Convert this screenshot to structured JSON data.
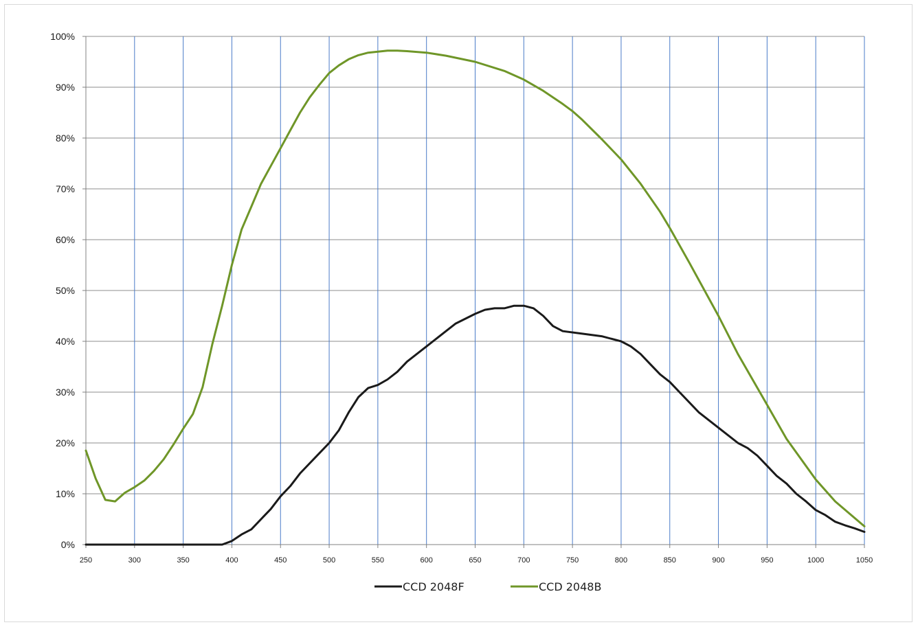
{
  "chart_data": {
    "type": "line",
    "title": "",
    "xlabel": "",
    "ylabel": "",
    "xlim": [
      250,
      1050
    ],
    "ylim": [
      0,
      100
    ],
    "x_ticks": [
      250,
      300,
      350,
      400,
      450,
      500,
      550,
      600,
      650,
      700,
      750,
      800,
      850,
      900,
      950,
      1000,
      1050
    ],
    "x_tick_labels": [
      "250",
      "300",
      "350",
      "400",
      "450",
      "500",
      "550",
      "600",
      "650",
      "700",
      "750",
      "800",
      "850",
      "900",
      "950",
      "1000",
      "1050"
    ],
    "y_ticks": [
      0,
      10,
      20,
      30,
      40,
      50,
      60,
      70,
      80,
      90,
      100
    ],
    "y_tick_labels": [
      "0%",
      "10%",
      "20%",
      "30%",
      "40%",
      "50%",
      "60%",
      "70%",
      "80%",
      "90%",
      "100%"
    ],
    "grid": true,
    "legend_position": "bottom",
    "colors": {
      "gridH": "#8c8c8c",
      "gridV": "#4a7bc8",
      "axis": "#808080"
    },
    "series": [
      {
        "name": "CCD 2048F",
        "color": "#1a1a1a",
        "x": [
          250,
          300,
          350,
          390,
          400,
          410,
          420,
          430,
          440,
          450,
          460,
          470,
          480,
          490,
          500,
          510,
          520,
          530,
          540,
          550,
          560,
          570,
          580,
          600,
          620,
          630,
          650,
          660,
          670,
          680,
          690,
          700,
          710,
          720,
          730,
          740,
          760,
          780,
          800,
          810,
          820,
          830,
          840,
          850,
          860,
          880,
          900,
          920,
          930,
          940,
          950,
          960,
          970,
          980,
          990,
          1000,
          1010,
          1020,
          1030,
          1040,
          1050
        ],
        "y": [
          0,
          0,
          0,
          0,
          0.7,
          2,
          3,
          5,
          7,
          9.5,
          11.5,
          14,
          16,
          18,
          20,
          22.5,
          26,
          29,
          30.8,
          31.4,
          32.5,
          34,
          36,
          39,
          42,
          43.5,
          45.4,
          46.2,
          46.5,
          46.5,
          47,
          47,
          46.5,
          45,
          43,
          42,
          41.5,
          41,
          40,
          39,
          37.5,
          35.5,
          33.5,
          32,
          30,
          26,
          23,
          20,
          19,
          17.5,
          15.5,
          13.5,
          12,
          10,
          8.5,
          6.8,
          5.8,
          4.5,
          3.8,
          3.2,
          2.5
        ]
      },
      {
        "name": "CCD 2048B",
        "color": "#6f9628",
        "x": [
          250,
          260,
          270,
          280,
          290,
          300,
          310,
          320,
          330,
          340,
          350,
          360,
          370,
          380,
          390,
          400,
          410,
          420,
          430,
          440,
          450,
          460,
          470,
          480,
          490,
          500,
          510,
          520,
          530,
          540,
          550,
          560,
          570,
          580,
          600,
          620,
          650,
          680,
          700,
          720,
          740,
          750,
          760,
          780,
          800,
          820,
          840,
          850,
          870,
          900,
          920,
          950,
          970,
          1000,
          1020,
          1050
        ],
        "y": [
          18.5,
          13,
          8.8,
          8.5,
          10.2,
          11.3,
          12.6,
          14.5,
          16.8,
          19.7,
          22.8,
          25.7,
          31,
          39.5,
          47,
          55,
          62,
          66.5,
          71,
          74.5,
          78,
          81.5,
          85,
          88,
          90.5,
          92.8,
          94.3,
          95.5,
          96.3,
          96.8,
          97,
          97.2,
          97.2,
          97.1,
          96.8,
          96.2,
          95,
          93.2,
          91.5,
          89.3,
          86.7,
          85.3,
          83.6,
          79.8,
          75.8,
          71,
          65.5,
          62.3,
          55.5,
          45,
          37.5,
          27.5,
          20.8,
          12.8,
          8.5,
          3.6
        ]
      }
    ]
  }
}
